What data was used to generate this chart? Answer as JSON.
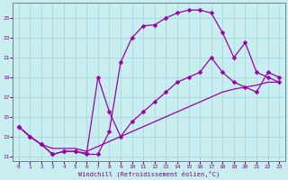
{
  "xlabel": "Windchill (Refroidissement éolien,°C)",
  "bg_color": "#c8eef0",
  "grid_color": "#a8d8dc",
  "line_color": "#9900aa",
  "xlim_min": -0.5,
  "xlim_max": 23.5,
  "ylim_min": 10.5,
  "ylim_max": 26.5,
  "xticks": [
    0,
    1,
    2,
    3,
    4,
    5,
    6,
    7,
    8,
    9,
    10,
    11,
    12,
    13,
    14,
    15,
    16,
    17,
    18,
    19,
    20,
    21,
    22,
    23
  ],
  "yticks": [
    11,
    13,
    15,
    17,
    19,
    21,
    23,
    25
  ],
  "curve1_x": [
    0,
    1,
    2,
    3,
    4,
    5,
    6,
    7,
    8,
    9,
    10,
    11,
    12,
    13,
    14,
    15,
    16,
    17,
    18,
    19,
    20,
    21,
    22,
    23
  ],
  "curve1_y": [
    14.0,
    13.0,
    12.2,
    11.2,
    11.5,
    11.5,
    11.2,
    11.2,
    13.5,
    20.5,
    23.0,
    24.2,
    24.3,
    25.0,
    25.5,
    25.8,
    25.8,
    25.5,
    23.5,
    21.0,
    22.5,
    19.5,
    19.0,
    18.5
  ],
  "curve1_markers": true,
  "curve2_x": [
    0,
    1,
    2,
    3,
    4,
    5,
    6,
    7,
    8,
    9,
    10,
    11,
    12,
    13,
    14,
    15,
    16,
    17,
    18,
    19,
    20,
    21,
    22,
    23
  ],
  "curve2_y": [
    14.0,
    13.0,
    12.2,
    11.8,
    11.8,
    11.8,
    11.5,
    12.0,
    12.5,
    13.0,
    13.5,
    14.0,
    14.5,
    15.0,
    15.5,
    16.0,
    16.5,
    17.0,
    17.5,
    17.8,
    18.0,
    18.2,
    18.5,
    18.5
  ],
  "curve2_markers": false,
  "curve3_x": [
    0,
    1,
    2,
    3,
    4,
    5,
    6,
    7,
    8,
    9,
    10,
    11,
    12,
    13,
    14,
    15,
    16,
    17,
    18,
    19,
    20,
    21,
    22,
    23
  ],
  "curve3_y": [
    14.0,
    13.0,
    12.2,
    11.2,
    11.5,
    11.5,
    11.3,
    19.0,
    15.5,
    13.0,
    14.5,
    15.5,
    16.5,
    17.5,
    18.5,
    19.0,
    19.5,
    21.0,
    19.5,
    18.5,
    18.0,
    17.5,
    19.5,
    19.0
  ],
  "curve3_markers": true
}
